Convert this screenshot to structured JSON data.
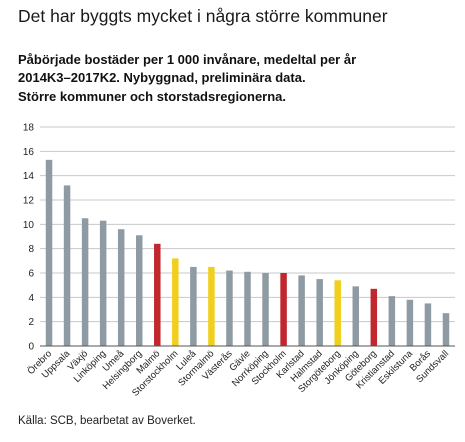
{
  "headline": "Det har byggts mycket i några större kommuner",
  "subtitle_lines": [
    "Påbörjade bostäder per 1 000 invånare, medeltal per år",
    "2014K3–2017K2. Nybyggnad, preliminära data.",
    "Större kommuner och storstadsregionerna."
  ],
  "source": "Källa: SCB, bearbetat av Boverket.",
  "colors": {
    "kommun": "#8f9ba3",
    "storstadsregion": "#f0cf1e",
    "storstad": "#c0282e",
    "grid": "#c8c8c8",
    "axis": "#555555"
  },
  "chart_data": {
    "type": "bar",
    "title": "",
    "xlabel": "",
    "ylabel": "",
    "ylim": [
      0,
      18
    ],
    "yticks": [
      0,
      2,
      4,
      6,
      8,
      10,
      12,
      14,
      16,
      18
    ],
    "grid": true,
    "categories": [
      "Örebro",
      "Uppsala",
      "Växjö",
      "Linköping",
      "Umeå",
      "Helsingborg",
      "Malmö",
      "Storstockholm",
      "Luleå",
      "Stormalmö",
      "Västerås",
      "Gävle",
      "Norrköping",
      "Stockholm",
      "Karlstad",
      "Halmstad",
      "Storgöteborg",
      "Jönköping",
      "Göteborg",
      "Kristianstad",
      "Eskilstuna",
      "Borås",
      "Sundsvall"
    ],
    "values": [
      15.3,
      13.2,
      10.5,
      10.3,
      9.6,
      9.1,
      8.4,
      7.2,
      6.5,
      6.5,
      6.2,
      6.1,
      6.0,
      6.0,
      5.8,
      5.5,
      5.4,
      4.9,
      4.7,
      4.1,
      3.8,
      3.5,
      2.7
    ],
    "bar_groups": [
      "kommun",
      "kommun",
      "kommun",
      "kommun",
      "kommun",
      "kommun",
      "storstad",
      "storstadsregion",
      "kommun",
      "storstadsregion",
      "kommun",
      "kommun",
      "kommun",
      "storstad",
      "kommun",
      "kommun",
      "storstadsregion",
      "kommun",
      "storstad",
      "kommun",
      "kommun",
      "kommun",
      "kommun"
    ]
  }
}
